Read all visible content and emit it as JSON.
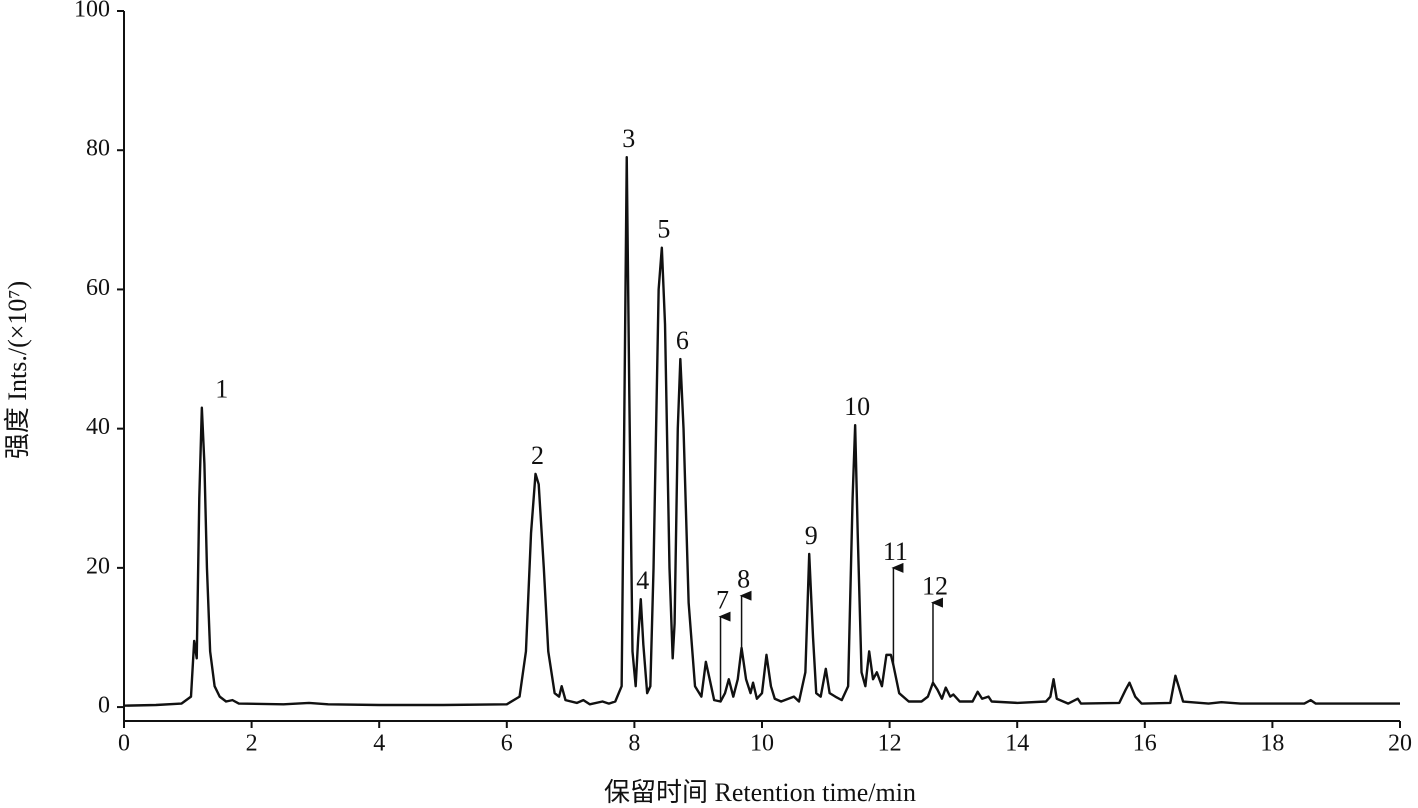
{
  "chart_data": {
    "type": "line",
    "xlabel": "保留时间 Retention time/min",
    "ylabel": "强度 Ints./(×10⁷)",
    "xlim": [
      0,
      20
    ],
    "ylim": [
      -2,
      100
    ],
    "xticks": [
      0,
      2,
      4,
      6,
      8,
      10,
      12,
      14,
      16,
      18,
      20
    ],
    "yticks": [
      0,
      20,
      40,
      60,
      80,
      100
    ],
    "grid": false,
    "x": [
      0,
      0.5,
      0.9,
      1.05,
      1.1,
      1.14,
      1.18,
      1.22,
      1.26,
      1.3,
      1.35,
      1.42,
      1.5,
      1.6,
      1.7,
      1.8,
      2.5,
      2.9,
      3.2,
      4,
      5,
      6.0,
      6.2,
      6.3,
      6.38,
      6.45,
      6.5,
      6.58,
      6.65,
      6.75,
      6.82,
      6.86,
      6.92,
      7.1,
      7.2,
      7.3,
      7.5,
      7.6,
      7.7,
      7.8,
      7.84,
      7.88,
      7.92,
      7.97,
      8.02,
      8.06,
      8.1,
      8.14,
      8.2,
      8.25,
      8.3,
      8.38,
      8.43,
      8.48,
      8.55,
      8.6,
      8.63,
      8.68,
      8.72,
      8.77,
      8.85,
      8.95,
      9.05,
      9.12,
      9.18,
      9.25,
      9.35,
      9.42,
      9.48,
      9.55,
      9.62,
      9.68,
      9.75,
      9.82,
      9.86,
      9.92,
      10.0,
      10.07,
      10.14,
      10.2,
      10.3,
      10.5,
      10.58,
      10.68,
      10.74,
      10.8,
      10.85,
      10.92,
      11.0,
      11.06,
      11.15,
      11.25,
      11.35,
      11.42,
      11.46,
      11.5,
      11.56,
      11.62,
      11.68,
      11.74,
      11.8,
      11.88,
      11.95,
      12.02,
      12.06,
      12.15,
      12.3,
      12.5,
      12.6,
      12.68,
      12.75,
      12.82,
      12.88,
      12.95,
      13.0,
      13.1,
      13.3,
      13.38,
      13.45,
      13.55,
      13.6,
      14.0,
      14.45,
      14.52,
      14.57,
      14.62,
      14.8,
      14.95,
      15.0,
      15.6,
      15.7,
      15.76,
      15.85,
      15.95,
      16.4,
      16.48,
      16.53,
      16.6,
      17.0,
      17.2,
      17.5,
      18.5,
      18.6,
      18.68,
      19.5,
      20
    ],
    "series": [
      {
        "color": "#111111",
        "values": [
          0.2,
          0.3,
          0.5,
          1.5,
          9.5,
          7,
          30,
          43,
          35,
          20,
          8,
          3,
          1.5,
          0.8,
          1.0,
          0.5,
          0.4,
          0.6,
          0.4,
          0.3,
          0.3,
          0.4,
          1.5,
          8,
          25,
          33.5,
          32,
          20,
          8,
          2,
          1.5,
          3,
          1,
          0.6,
          1.0,
          0.4,
          0.8,
          0.5,
          0.8,
          3,
          40,
          79,
          45,
          8,
          3,
          10,
          15.5,
          9,
          2,
          3,
          20,
          60,
          66,
          55,
          20,
          7,
          12,
          40,
          50,
          40,
          15,
          3,
          1.5,
          6.5,
          4,
          1,
          0.8,
          2,
          4,
          1.5,
          4,
          8.5,
          4,
          2,
          3.5,
          1.2,
          2,
          7.5,
          3,
          1.2,
          0.8,
          1.5,
          0.8,
          5,
          22,
          10,
          2,
          1.5,
          5.5,
          2,
          1.5,
          1,
          3,
          30,
          40.5,
          25,
          5,
          3,
          8,
          4,
          5,
          3,
          7.5,
          7.5,
          6,
          2,
          0.8,
          0.8,
          1.5,
          3.5,
          2.5,
          1.2,
          2.8,
          1.5,
          1.8,
          0.8,
          0.8,
          2.2,
          1.2,
          1.5,
          0.8,
          0.6,
          0.8,
          1.5,
          4,
          1.2,
          0.5,
          1.2,
          0.5,
          0.6,
          2.5,
          3.5,
          1.5,
          0.5,
          0.6,
          4.5,
          3,
          0.8,
          0.5,
          0.7,
          0.5,
          0.5,
          1.0,
          0.5,
          0.5,
          0.5
        ]
      }
    ],
    "annotations": [
      {
        "text": "1",
        "x": 1.5,
        "y": 43
      },
      {
        "text": "2",
        "x": 6.45,
        "y": 33.5
      },
      {
        "text": "3",
        "x": 7.88,
        "y": 79
      },
      {
        "text": "4",
        "x": 8.1,
        "y": 15.5
      },
      {
        "text": "5",
        "x": 8.43,
        "y": 66
      },
      {
        "text": "6",
        "x": 8.72,
        "y": 50
      },
      {
        "text": "7",
        "x": 9.35,
        "y": 13,
        "arrow": true
      },
      {
        "text": "8",
        "x": 9.68,
        "y": 16,
        "arrow": true
      },
      {
        "text": "9",
        "x": 10.74,
        "y": 22
      },
      {
        "text": "10",
        "x": 11.46,
        "y": 40.5
      },
      {
        "text": "11",
        "x": 12.06,
        "y": 20,
        "arrow": true
      },
      {
        "text": "12",
        "x": 12.68,
        "y": 15,
        "arrow": true
      }
    ]
  }
}
